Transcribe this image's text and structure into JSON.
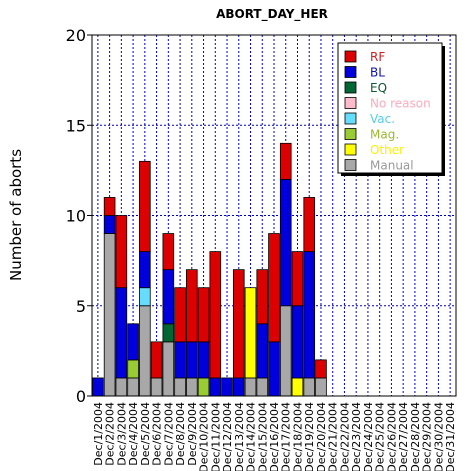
{
  "chart_data": {
    "type": "bar",
    "stacked": true,
    "title": "ABORT_DAY_HER",
    "xlabel": "",
    "ylabel": "Number of aborts",
    "ylim": [
      0,
      20
    ],
    "yticks": [
      0,
      5,
      10,
      15,
      20
    ],
    "grid": true,
    "legend_position": "top-right",
    "categories": [
      "Dec/1/2004",
      "Dec/2/2004",
      "Dec/3/2004",
      "Dec/4/2004",
      "Dec/5/2004",
      "Dec/6/2004",
      "Dec/7/2004",
      "Dec/8/2004",
      "Dec/9/2004",
      "Dec/10/2004",
      "Dec/11/2004",
      "Dec/12/2004",
      "Dec/13/2004",
      "Dec/14/2004",
      "Dec/15/2004",
      "Dec/16/2004",
      "Dec/17/2004",
      "Dec/18/2004",
      "Dec/19/2004",
      "Dec/20/2004",
      "Dec/21/2004",
      "Dec/22/2004",
      "Dec/23/2004",
      "Dec/24/2004",
      "Dec/25/2004",
      "Dec/26/2004",
      "Dec/27/2004",
      "Dec/28/2004",
      "Dec/29/2004",
      "Dec/30/2004",
      "Dec/31/2004"
    ],
    "series": [
      {
        "name": "Manual",
        "color": "#a8a8a8",
        "values": [
          0,
          9,
          1,
          1,
          5,
          1,
          3,
          1,
          1,
          0,
          0,
          0,
          0,
          1,
          1,
          0,
          5,
          0,
          1,
          1,
          0,
          0,
          0,
          0,
          0,
          0,
          0,
          0,
          0,
          0,
          0
        ]
      },
      {
        "name": "Other",
        "color": "#ffff00",
        "values": [
          0,
          0,
          0,
          0,
          0,
          0,
          0,
          0,
          0,
          0,
          0,
          0,
          0,
          5,
          0,
          0,
          0,
          1,
          0,
          0,
          0,
          0,
          0,
          0,
          0,
          0,
          0,
          0,
          0,
          0,
          0
        ]
      },
      {
        "name": "Mag.",
        "color": "#99cc33",
        "values": [
          0,
          0,
          0,
          1,
          0,
          0,
          0,
          0,
          0,
          1,
          0,
          0,
          0,
          0,
          0,
          0,
          0,
          0,
          0,
          0,
          0,
          0,
          0,
          0,
          0,
          0,
          0,
          0,
          0,
          0,
          0
        ]
      },
      {
        "name": "Vac.",
        "color": "#66ddff",
        "values": [
          0,
          0,
          0,
          0,
          1,
          0,
          0,
          0,
          0,
          0,
          0,
          0,
          0,
          0,
          0,
          0,
          0,
          0,
          0,
          0,
          0,
          0,
          0,
          0,
          0,
          0,
          0,
          0,
          0,
          0,
          0
        ]
      },
      {
        "name": "No reason",
        "color": "#ffbbcc",
        "values": [
          0,
          0,
          0,
          0,
          0,
          0,
          0,
          0,
          0,
          0,
          0,
          0,
          0,
          0,
          0,
          0,
          0,
          0,
          0,
          0,
          0,
          0,
          0,
          0,
          0,
          0,
          0,
          0,
          0,
          0,
          0
        ]
      },
      {
        "name": "EQ",
        "color": "#006633",
        "values": [
          0,
          0,
          0,
          0,
          0,
          0,
          1,
          0,
          0,
          0,
          0,
          0,
          0,
          0,
          0,
          0,
          0,
          0,
          0,
          0,
          0,
          0,
          0,
          0,
          0,
          0,
          0,
          0,
          0,
          0,
          0
        ]
      },
      {
        "name": "BL",
        "color": "#0000dd",
        "values": [
          1,
          1,
          5,
          2,
          2,
          0,
          3,
          2,
          2,
          2,
          1,
          1,
          1,
          0,
          3,
          3,
          7,
          4,
          7,
          0,
          0,
          0,
          0,
          0,
          0,
          0,
          0,
          0,
          0,
          0,
          0
        ]
      },
      {
        "name": "RF",
        "color": "#dd0000",
        "values": [
          0,
          1,
          4,
          0,
          5,
          2,
          2,
          3,
          4,
          3,
          7,
          0,
          6,
          0,
          3,
          6,
          2,
          3,
          3,
          1,
          0,
          0,
          0,
          0,
          0,
          0,
          0,
          0,
          0,
          0,
          0
        ]
      }
    ],
    "legend_order": [
      "RF",
      "BL",
      "EQ",
      "No reason",
      "Vac.",
      "Mag.",
      "Other",
      "Manual"
    ],
    "legend_colors": {
      "RF": "#dd0000",
      "BL": "#0000dd",
      "EQ": "#006633",
      "No reason": "#ffbbcc",
      "Vac.": "#66ddff",
      "Mag.": "#99cc33",
      "Other": "#ffff00",
      "Manual": "#a8a8a8"
    },
    "legend_text_colors": {
      "RF": "#cc2222",
      "BL": "#1111aa",
      "EQ": "#115533",
      "No reason": "#ffaabb",
      "Vac.": "#55ccee",
      "Mag.": "#99bb33",
      "Other": "#ffee00",
      "Manual": "#999999"
    },
    "gridline_color": "#0000cc"
  }
}
